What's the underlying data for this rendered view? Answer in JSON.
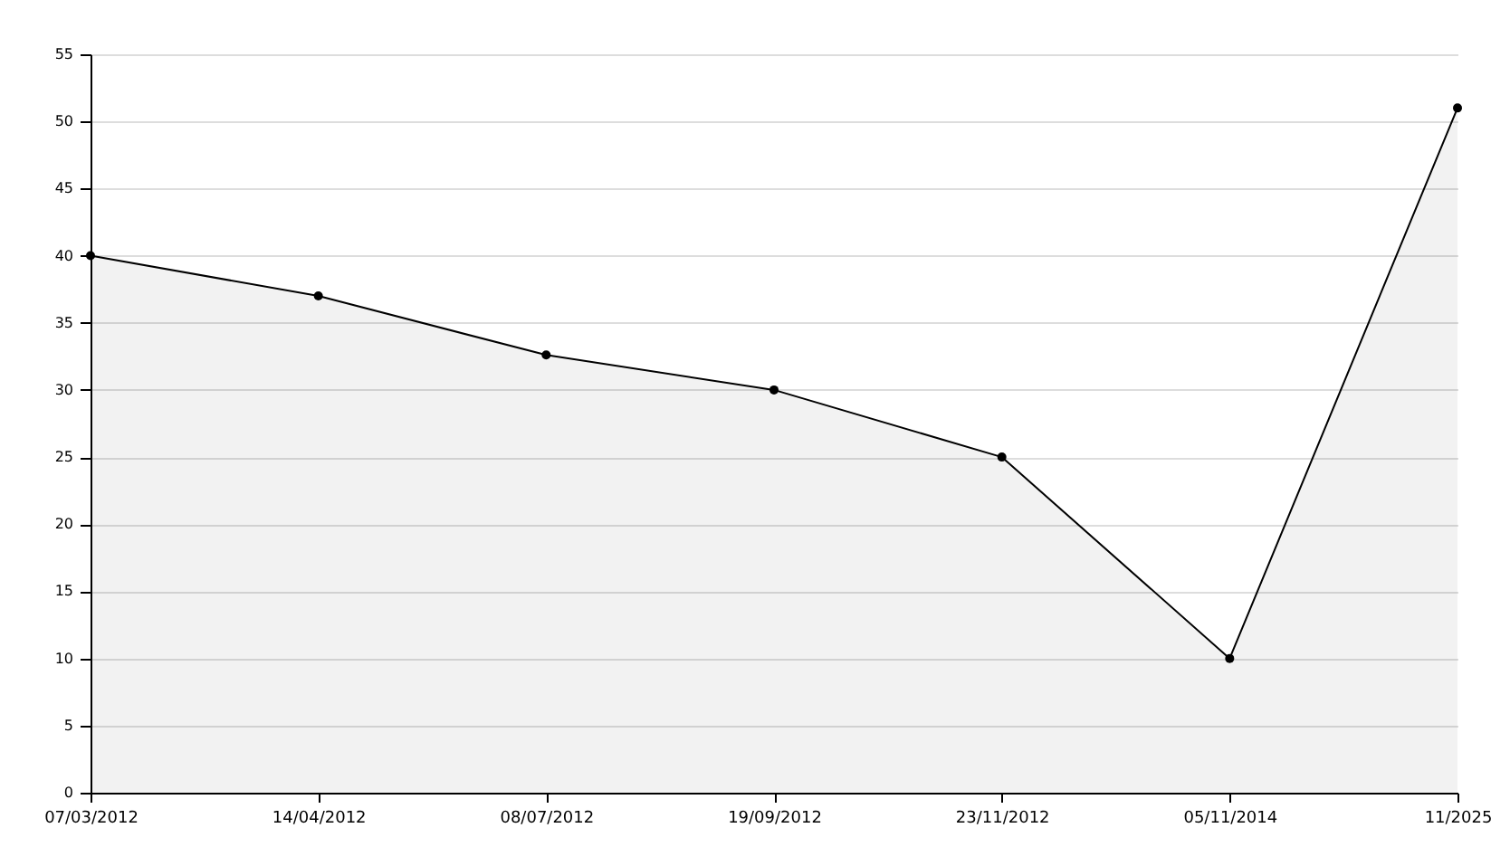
{
  "chart_data": {
    "type": "area",
    "categories": [
      "07/03/2012",
      "14/04/2012",
      "08/07/2012",
      "19/09/2012",
      "23/11/2012",
      "05/11/2014",
      "11/2025"
    ],
    "series": [
      {
        "color": "#000000",
        "values": [
          40,
          37,
          32.6,
          30,
          25,
          10,
          51
        ]
      }
    ],
    "ylim": [
      0,
      55
    ],
    "yticks": [
      0,
      5,
      10,
      15,
      20,
      25,
      30,
      35,
      40,
      45,
      50,
      55
    ],
    "grid": "y",
    "marker": "circle",
    "legend": false
  }
}
